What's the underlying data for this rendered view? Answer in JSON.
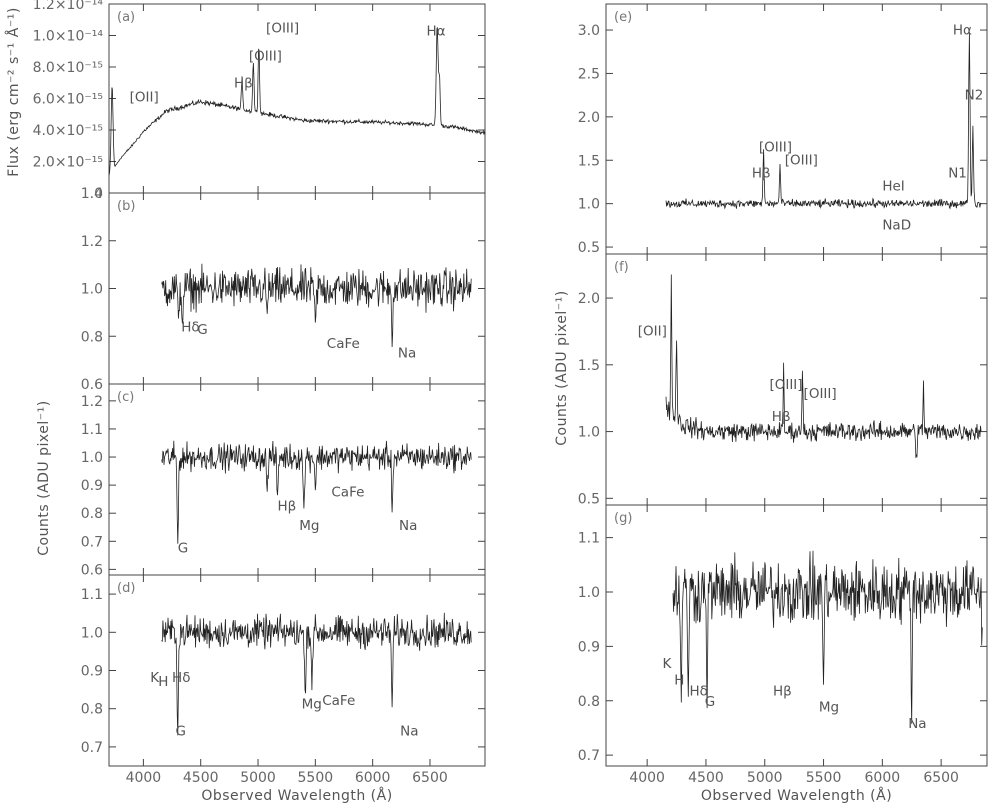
{
  "chart_data": [
    {
      "id": "a",
      "type": "line",
      "tag": "(a)",
      "yticks": [
        0,
        2e-15,
        4e-15,
        6e-15,
        8e-15,
        1e-14,
        1.2e-14
      ],
      "ytick_labels": [
        "0",
        "2.0×10⁻¹⁵",
        "4.0×10⁻¹⁵",
        "6.0×10⁻¹⁵",
        "8.0×10⁻¹⁵",
        "1.0×10⁻¹⁴",
        "1.2×10⁻¹⁴"
      ],
      "ylim": [
        0,
        1.2e-14
      ],
      "xlim": [
        3700,
        6980
      ],
      "series": [
        {
          "x_range": [
            3700,
            6980
          ],
          "noise": 0.04,
          "continuum": [
            [
              3700,
              1.1e-15
            ],
            [
              3800,
              2.2e-15
            ],
            [
              3900,
              3e-15
            ],
            [
              4000,
              3.9e-15
            ],
            [
              4200,
              5.2e-15
            ],
            [
              4500,
              5.8e-15
            ],
            [
              4800,
              5.4e-15
            ],
            [
              5000,
              5.1e-15
            ],
            [
              5400,
              4.6e-15
            ],
            [
              6000,
              4.5e-15
            ],
            [
              6400,
              4.4e-15
            ],
            [
              6700,
              4.2e-15
            ],
            [
              6980,
              3.8e-15
            ]
          ],
          "lines": [
            [
              3727,
              5.5e-15,
              8
            ],
            [
              4861,
              2e-15,
              6
            ],
            [
              4959,
              3.2e-15,
              6
            ],
            [
              5007,
              4.5e-15,
              6
            ],
            [
              6563,
              6.5e-15,
              8
            ],
            [
              6583,
              3e-15,
              6
            ]
          ]
        }
      ],
      "labels": [
        {
          "text": "[OII]",
          "x": 3880,
          "y": 5.8e-15
        },
        {
          "text": "Hβ",
          "x": 4790,
          "y": 6.7e-15
        },
        {
          "text": "[OIII]",
          "x": 4920,
          "y": 8.4e-15
        },
        {
          "text": "[OIII]",
          "x": 5070,
          "y": 1.02e-14
        },
        {
          "text": "Hα",
          "x": 6470,
          "y": 1e-14
        }
      ]
    },
    {
      "id": "b",
      "type": "line",
      "tag": "(b)",
      "yticks": [
        0.6,
        0.8,
        1.0,
        1.2,
        1.4
      ],
      "ytick_labels": [
        "0.6",
        "0.8",
        "1.0",
        "1.2",
        "1.4"
      ],
      "ylim": [
        0.6,
        1.4
      ],
      "xlim": [
        3700,
        6980
      ],
      "series": [
        {
          "x_range": [
            4160,
            6860
          ],
          "noise": 0.07,
          "continuum": [
            [
              4160,
              1.0
            ],
            [
              6860,
              1.0
            ]
          ],
          "lines": [
            [
              4340,
              -0.15,
              5
            ],
            [
              4305,
              -0.18,
              5
            ],
            [
              5500,
              -0.17,
              6
            ],
            [
              6170,
              -0.2,
              5
            ],
            [
              5080,
              -0.12,
              5
            ]
          ]
        }
      ],
      "labels": [
        {
          "text": "Hδ",
          "x": 4330,
          "y": 0.82
        },
        {
          "text": "G",
          "x": 4470,
          "y": 0.81
        },
        {
          "text": "CaFe",
          "x": 5600,
          "y": 0.75
        },
        {
          "text": "Na",
          "x": 6220,
          "y": 0.71
        }
      ]
    },
    {
      "id": "c",
      "type": "line",
      "tag": "(c)",
      "yticks": [
        0.6,
        0.7,
        0.8,
        0.9,
        1.0,
        1.1,
        1.2
      ],
      "ytick_labels": [
        "0.6",
        "0.7",
        "0.8",
        "0.9",
        "1.0",
        "1.1",
        "1.2"
      ],
      "ylim": [
        0.58,
        1.26
      ],
      "xlim": [
        3700,
        6980
      ],
      "series": [
        {
          "x_range": [
            4160,
            6860
          ],
          "noise": 0.04,
          "continuum": [
            [
              4160,
              1.0
            ],
            [
              6860,
              1.0
            ]
          ],
          "lines": [
            [
              4300,
              -0.3,
              6
            ],
            [
              5080,
              -0.12,
              6
            ],
            [
              5170,
              -0.14,
              6
            ],
            [
              5400,
              -0.2,
              6
            ],
            [
              5500,
              -0.1,
              6
            ],
            [
              6170,
              -0.2,
              5
            ]
          ]
        }
      ],
      "labels": [
        {
          "text": "G",
          "x": 4300,
          "y": 0.66
        },
        {
          "text": "Hβ",
          "x": 5170,
          "y": 0.81
        },
        {
          "text": "CaFe",
          "x": 5640,
          "y": 0.86
        },
        {
          "text": "Mg",
          "x": 5360,
          "y": 0.74
        },
        {
          "text": "Na",
          "x": 6230,
          "y": 0.74
        }
      ]
    },
    {
      "id": "d",
      "type": "line",
      "tag": "(d)",
      "yticks": [
        0.7,
        0.8,
        0.9,
        1.0,
        1.1
      ],
      "ytick_labels": [
        "0.7",
        "0.8",
        "0.9",
        "1.0",
        "1.1"
      ],
      "ylim": [
        0.65,
        1.15
      ],
      "xlim": [
        3700,
        6980
      ],
      "xticks": [
        4000,
        4500,
        5000,
        5500,
        6000,
        6500
      ],
      "xtick_labels": [
        "4000",
        "4500",
        "5000",
        "5500",
        "6000",
        "6500"
      ],
      "xlabel": "Observed Wavelength (Å)",
      "series": [
        {
          "x_range": [
            4160,
            6860
          ],
          "noise": 0.035,
          "continuum": [
            [
              4160,
              1.0
            ],
            [
              6860,
              1.0
            ]
          ],
          "lines": [
            [
              4300,
              -0.24,
              6
            ],
            [
              5410,
              -0.16,
              6
            ],
            [
              5470,
              -0.12,
              6
            ],
            [
              6170,
              -0.22,
              5
            ]
          ]
        }
      ],
      "labels": [
        {
          "text": "K",
          "x": 4060,
          "y": 0.87
        },
        {
          "text": "H",
          "x": 4130,
          "y": 0.86
        },
        {
          "text": "Hδ",
          "x": 4250,
          "y": 0.87
        },
        {
          "text": "G",
          "x": 4280,
          "y": 0.73
        },
        {
          "text": "CaFe",
          "x": 5560,
          "y": 0.81
        },
        {
          "text": "Mg",
          "x": 5380,
          "y": 0.8
        },
        {
          "text": "Na",
          "x": 6240,
          "y": 0.73
        }
      ]
    },
    {
      "id": "e",
      "type": "line",
      "tag": "(e)",
      "yticks": [
        0.5,
        1.0,
        1.5,
        2.0,
        2.5,
        3.0
      ],
      "ytick_labels": [
        "0.5",
        "1.0",
        "1.5",
        "2.0",
        "2.5",
        "3.0"
      ],
      "ylim": [
        0.42,
        3.3
      ],
      "xlim": [
        3650,
        6890
      ],
      "series": [
        {
          "x_range": [
            4160,
            6840
          ],
          "noise": 0.04,
          "continuum": [
            [
              4160,
              1.0
            ],
            [
              6840,
              1.0
            ]
          ],
          "lines": [
            [
              4990,
              0.6,
              5
            ],
            [
              5130,
              0.45,
              5
            ],
            [
              6740,
              2.0,
              6
            ],
            [
              6770,
              0.9,
              5
            ],
            [
              6080,
              -0.1,
              6
            ],
            [
              6080,
              0.12,
              4
            ]
          ]
        }
      ],
      "labels": [
        {
          "text": "Hβ",
          "x": 4890,
          "y": 1.3
        },
        {
          "text": "[OIII]",
          "x": 4950,
          "y": 1.6
        },
        {
          "text": "[OIII]",
          "x": 5170,
          "y": 1.45
        },
        {
          "text": "HeI",
          "x": 6000,
          "y": 1.15
        },
        {
          "text": "NaD",
          "x": 6000,
          "y": 0.7
        },
        {
          "text": "Hα",
          "x": 6600,
          "y": 2.95
        },
        {
          "text": "N2",
          "x": 6700,
          "y": 2.2
        },
        {
          "text": "N1",
          "x": 6560,
          "y": 1.3
        }
      ]
    },
    {
      "id": "f",
      "type": "line",
      "tag": "(f)",
      "yticks": [
        0.5,
        1.0,
        1.5,
        2.0
      ],
      "ytick_labels": [
        "0.5",
        "1.0",
        "1.5",
        "2.0"
      ],
      "ylim": [
        0.45,
        2.33
      ],
      "xlim": [
        3650,
        6890
      ],
      "series": [
        {
          "x_range": [
            4160,
            6840
          ],
          "noise": 0.06,
          "continuum": [
            [
              4160,
              1.2
            ],
            [
              4300,
              1.05
            ],
            [
              4500,
              1.0
            ],
            [
              6840,
              1.0
            ]
          ],
          "lines": [
            [
              4205,
              1.0,
              4
            ],
            [
              4250,
              0.6,
              5
            ],
            [
              5160,
              0.45,
              4
            ],
            [
              5320,
              0.5,
              4
            ],
            [
              6350,
              0.35,
              4
            ],
            [
              6290,
              -0.2,
              5
            ]
          ]
        }
      ],
      "labels": [
        {
          "text": "[OII]",
          "x": 3920,
          "y": 1.72
        },
        {
          "text": "Hβ",
          "x": 5060,
          "y": 1.08
        },
        {
          "text": "[OIII]",
          "x": 5040,
          "y": 1.32
        },
        {
          "text": "[OIII]",
          "x": 5330,
          "y": 1.25
        }
      ]
    },
    {
      "id": "g",
      "type": "line",
      "tag": "(g)",
      "yticks": [
        0.7,
        0.8,
        0.9,
        1.0,
        1.1
      ],
      "ytick_labels": [
        "0.7",
        "0.8",
        "0.9",
        "1.0",
        "1.1"
      ],
      "ylim": [
        0.68,
        1.16
      ],
      "xlim": [
        3650,
        6890
      ],
      "xticks": [
        4000,
        4500,
        5000,
        5500,
        6000,
        6500
      ],
      "xtick_labels": [
        "4000",
        "4500",
        "5000",
        "5500",
        "6000",
        "6500"
      ],
      "xlabel": "Observed Wavelength (Å)",
      "series": [
        {
          "x_range": [
            4220,
            6850
          ],
          "noise": 0.05,
          "continuum": [
            [
              4220,
              1.0
            ],
            [
              6850,
              1.0
            ]
          ],
          "lines": [
            [
              4290,
              -0.2,
              5
            ],
            [
              4350,
              -0.17,
              5
            ],
            [
              4510,
              -0.16,
              5
            ],
            [
              5170,
              0.2,
              4
            ],
            [
              5170,
              -0.14,
              5
            ],
            [
              5500,
              -0.18,
              5
            ],
            [
              6250,
              -0.2,
              5
            ],
            [
              6850,
              -0.12,
              4
            ]
          ]
        }
      ],
      "labels": [
        {
          "text": "K",
          "x": 4130,
          "y": 0.86
        },
        {
          "text": "H",
          "x": 4230,
          "y": 0.83
        },
        {
          "text": "Hδ",
          "x": 4360,
          "y": 0.81
        },
        {
          "text": "G",
          "x": 4490,
          "y": 0.79
        },
        {
          "text": "Hβ",
          "x": 5070,
          "y": 0.81
        },
        {
          "text": "Mg",
          "x": 5460,
          "y": 0.78
        },
        {
          "text": "Na",
          "x": 6220,
          "y": 0.75
        }
      ]
    }
  ],
  "axis_titles": {
    "flux": "Flux (erg cm⁻² s⁻¹ Å⁻¹)",
    "counts_left": "Counts (ADU pixel⁻¹)",
    "counts_right": "Counts (ADU pixel⁻¹)"
  }
}
